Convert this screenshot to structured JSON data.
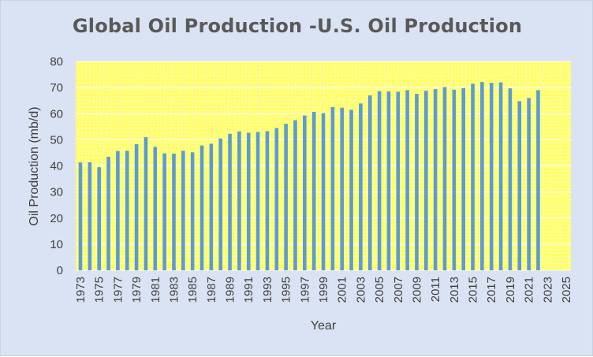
{
  "chart_data": {
    "type": "bar",
    "title": "Global Oil Production -U.S. Oil Production",
    "xlabel": "Year",
    "ylabel": "Oil Production (mb/d)",
    "ylim": [
      0,
      80
    ],
    "yticks": [
      0,
      10,
      20,
      30,
      40,
      50,
      60,
      70,
      80
    ],
    "xlim": [
      1973,
      2025
    ],
    "xtick_labels": [
      "1973",
      "1975",
      "1977",
      "1979",
      "1981",
      "1983",
      "1985",
      "1987",
      "1989",
      "1991",
      "1993",
      "1995",
      "1997",
      "1999",
      "2001",
      "2003",
      "2005",
      "2007",
      "2009",
      "2011",
      "2013",
      "2015",
      "2017",
      "2019",
      "2021",
      "2023",
      "2025"
    ],
    "grid": true,
    "legend": "none",
    "colors": {
      "bar": "#5b9bd5",
      "plot_background": "#ffff66",
      "grid": "#ffffff",
      "frame": "#dae3f3"
    },
    "series": [
      {
        "x": [
          1973,
          1974,
          1975,
          1976,
          1977,
          1978,
          1979,
          1980,
          1981,
          1982,
          1983,
          1984,
          1985,
          1986,
          1987,
          1988,
          1989,
          1990,
          1991,
          1992,
          1993,
          1994,
          1995,
          1996,
          1997,
          1998,
          1999,
          2000,
          2001,
          2002,
          2003,
          2004,
          2005,
          2006,
          2007,
          2008,
          2009,
          2010,
          2011,
          2012,
          2013,
          2014,
          2015,
          2016,
          2017,
          2018,
          2019,
          2020,
          2021,
          2022
        ],
        "values": [
          41.3,
          41.4,
          39.5,
          43.5,
          45.7,
          45.8,
          48.3,
          51.0,
          47.3,
          44.8,
          44.7,
          45.8,
          45.2,
          47.8,
          48.5,
          50.5,
          52.3,
          53.2,
          52.7,
          53.0,
          53.3,
          54.5,
          56.1,
          57.5,
          59.3,
          60.7,
          60.2,
          62.5,
          62.3,
          61.5,
          63.9,
          67.0,
          68.6,
          68.5,
          68.4,
          69.0,
          67.6,
          68.8,
          69.4,
          70.2,
          69.2,
          69.8,
          71.5,
          72.1,
          71.8,
          72.0,
          69.7,
          64.8,
          66.0,
          69.0
        ]
      }
    ]
  }
}
